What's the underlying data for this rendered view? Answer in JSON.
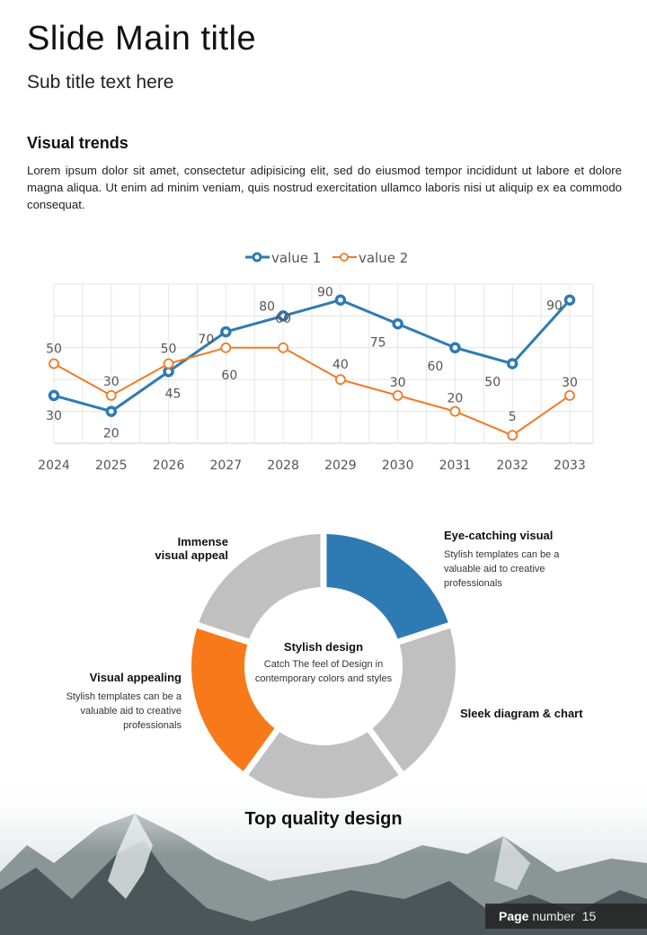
{
  "header": {
    "title": "Slide Main title",
    "subtitle": "Sub title text here"
  },
  "section": {
    "title": "Visual trends",
    "body": "Lorem ipsum dolor sit amet, consectetur adipisicing elit, sed do eiusmod tempor incididunt ut labore et dolore magna aliqua. Ut enim ad minim veniam, quis nostrud exercitation ullamco laboris nisi ut aliquip ex ea commodo consequat."
  },
  "chart_data": [
    {
      "type": "line",
      "title": "",
      "xlabel": "",
      "ylabel": "",
      "categories": [
        "2024",
        "2025",
        "2026",
        "2027",
        "2028",
        "2029",
        "2030",
        "2031",
        "2032",
        "2033"
      ],
      "series": [
        {
          "name": "value 1",
          "color": "#2E7BB4",
          "values": [
            30,
            20,
            45,
            70,
            80,
            90,
            75,
            60,
            50,
            90
          ]
        },
        {
          "name": "value 2",
          "color": "#F07A25",
          "values": [
            50,
            30,
            50,
            60,
            60,
            40,
            30,
            20,
            5,
            30
          ]
        }
      ],
      "ylim": [
        0,
        100
      ],
      "y_tick_labels_shown": false,
      "grid": true,
      "legend": "top-center",
      "data_labels": true
    },
    {
      "type": "pie",
      "variant": "donut",
      "title": "Stylish design",
      "segments": [
        {
          "label": "Eye-catching visual",
          "value": 20,
          "color": "#2E7BB4"
        },
        {
          "label": "Sleek diagram & chart",
          "value": 20,
          "color": "#C0C0C0"
        },
        {
          "label": "",
          "value": 20,
          "color": "#C0C0C0"
        },
        {
          "label": "Visual appealing",
          "value": 20,
          "color": "#F7791A"
        },
        {
          "label": "Immense visual appeal",
          "value": 20,
          "color": "#C0C0C0"
        }
      ]
    }
  ],
  "donut": {
    "center_title": "Stylish design",
    "center_text": "Catch The feel of Design in contemporary colors and styles",
    "labels": {
      "eye_catching": {
        "title": "Eye-catching visual",
        "text": "Stylish templates can be a valuable aid to creative professionals"
      },
      "sleek": {
        "title": "Sleek diagram & chart"
      },
      "visual_appealing": {
        "title": "Visual appealing",
        "text": "Stylish templates can be a valuable aid to creative professionals"
      },
      "immense_line1": "Immense",
      "immense_line2": "visual appeal"
    }
  },
  "footer": {
    "tagline": "Top quality design",
    "page_label_bold": "Page",
    "page_label": "number",
    "page_number": "15"
  }
}
